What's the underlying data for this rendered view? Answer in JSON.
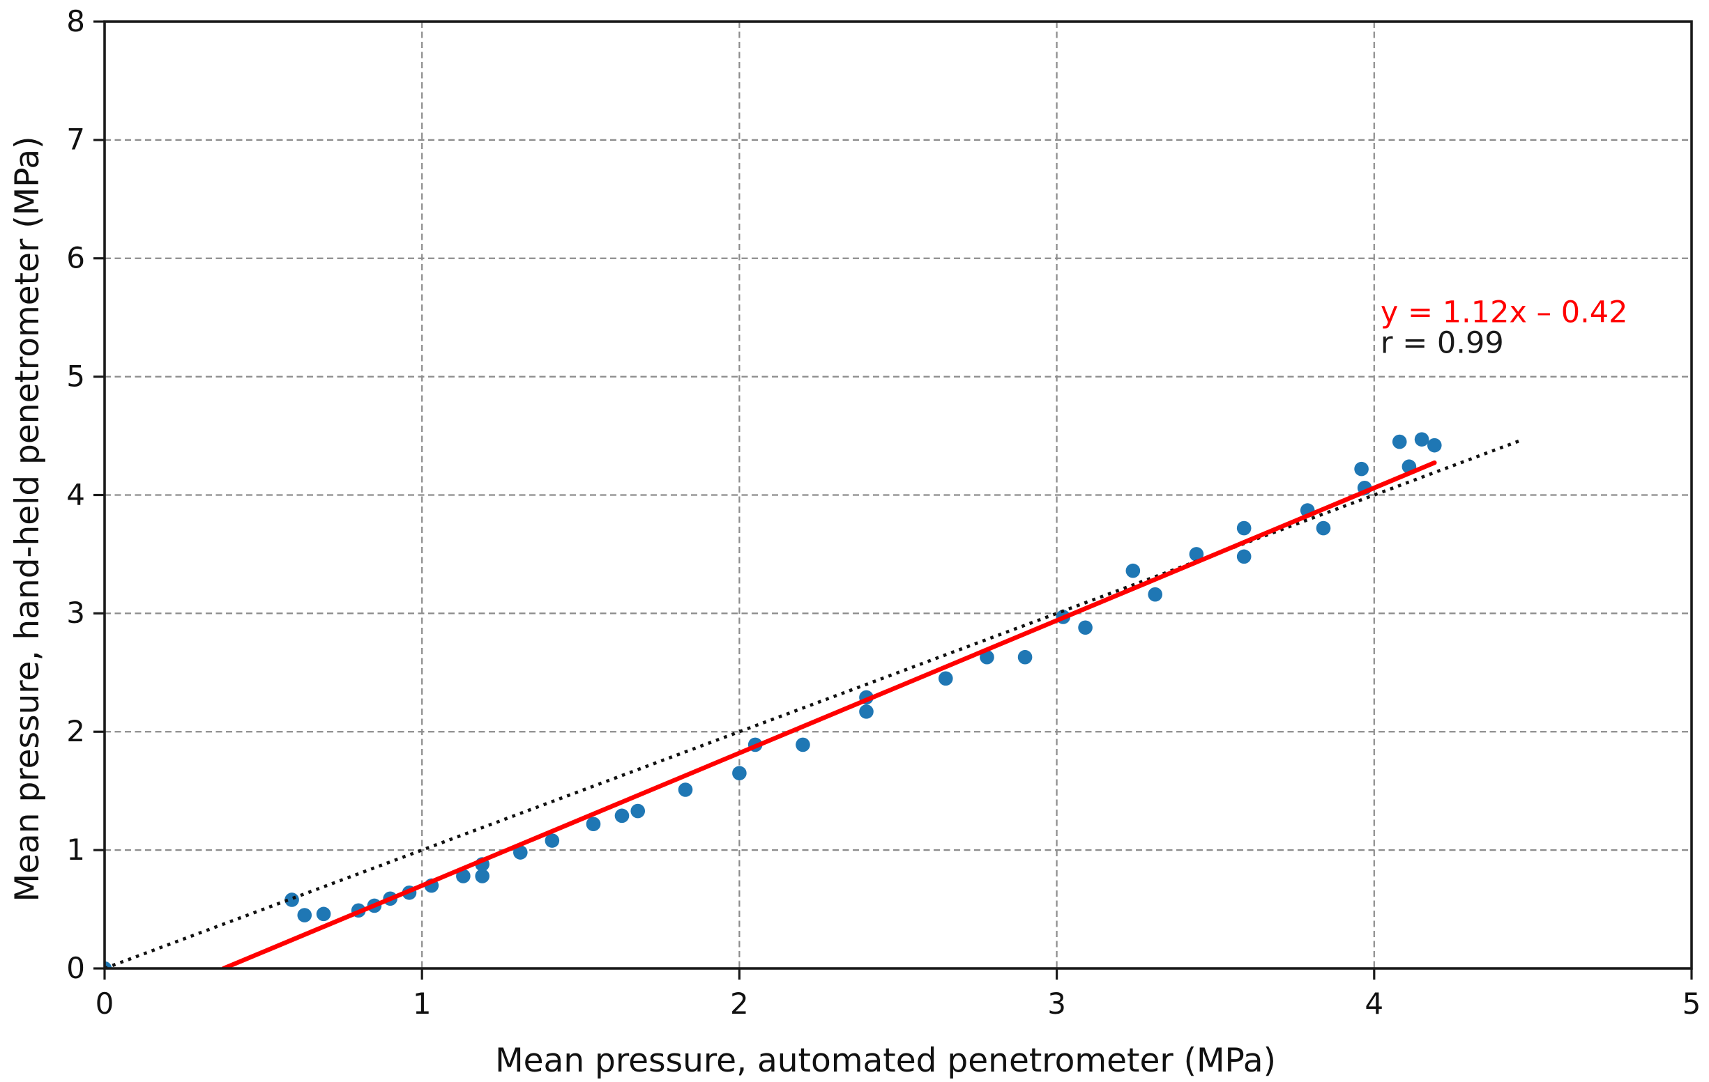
{
  "chart_data": {
    "type": "scatter",
    "title": "",
    "xlabel": "Mean pressure, automated penetrometer (MPa)",
    "ylabel": "Mean pressure, hand-held penetrometer (MPa)",
    "xlim": [
      0,
      5
    ],
    "ylim": [
      0,
      8
    ],
    "x_ticks": [
      0,
      1,
      2,
      3,
      4,
      5
    ],
    "y_ticks": [
      0,
      1,
      2,
      3,
      4,
      5,
      6,
      7,
      8
    ],
    "grid": true,
    "legend": "none",
    "point_color": "#1f77b4",
    "points": [
      [
        0.0,
        0.0
      ],
      [
        0.59,
        0.58
      ],
      [
        0.63,
        0.45
      ],
      [
        0.69,
        0.46
      ],
      [
        0.8,
        0.49
      ],
      [
        0.85,
        0.53
      ],
      [
        0.9,
        0.59
      ],
      [
        0.96,
        0.64
      ],
      [
        1.03,
        0.7
      ],
      [
        1.13,
        0.78
      ],
      [
        1.19,
        0.78
      ],
      [
        1.19,
        0.88
      ],
      [
        1.31,
        0.98
      ],
      [
        1.41,
        1.08
      ],
      [
        1.54,
        1.22
      ],
      [
        1.63,
        1.29
      ],
      [
        1.68,
        1.33
      ],
      [
        1.83,
        1.51
      ],
      [
        2.0,
        1.65
      ],
      [
        2.05,
        1.89
      ],
      [
        2.2,
        1.89
      ],
      [
        2.4,
        2.17
      ],
      [
        2.4,
        2.29
      ],
      [
        2.65,
        2.45
      ],
      [
        2.78,
        2.63
      ],
      [
        2.9,
        2.63
      ],
      [
        3.02,
        2.97
      ],
      [
        3.09,
        2.88
      ],
      [
        3.24,
        3.36
      ],
      [
        3.31,
        3.16
      ],
      [
        3.44,
        3.5
      ],
      [
        3.59,
        3.72
      ],
      [
        3.59,
        3.48
      ],
      [
        3.79,
        3.87
      ],
      [
        3.84,
        3.72
      ],
      [
        3.96,
        4.22
      ],
      [
        3.97,
        4.06
      ],
      [
        4.08,
        4.45
      ],
      [
        4.11,
        4.24
      ],
      [
        4.15,
        4.47
      ],
      [
        4.19,
        4.42
      ]
    ],
    "fit_line": {
      "slope": 1.12,
      "intercept": -0.42,
      "x_start": 0.375,
      "x_end": 4.19,
      "color": "#ff0000"
    },
    "identity_line": {
      "x_start": 0,
      "y_start": 0,
      "x_end": 4.47,
      "y_end": 4.47,
      "style": "dotted",
      "color": "#111111"
    },
    "annotations": [
      {
        "text": "y = 1.12x – 0.42",
        "color": "#ff0000",
        "x": 4.02,
        "y": 5.46
      },
      {
        "text": "r = 0.99",
        "color": "#1a1a1a",
        "x": 4.02,
        "y": 5.2
      }
    ]
  }
}
